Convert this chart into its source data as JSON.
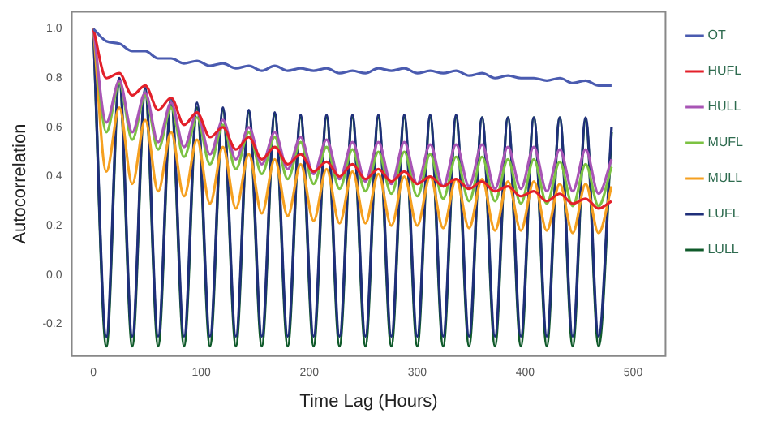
{
  "chart_data": {
    "type": "line",
    "xlabel": "Time Lag (Hours)",
    "ylabel": "Autocorrelation",
    "x": [
      0,
      12,
      24,
      36,
      48,
      60,
      72,
      84,
      96,
      108,
      120,
      132,
      144,
      156,
      168,
      180,
      192,
      204,
      216,
      228,
      240,
      252,
      264,
      276,
      288,
      300,
      312,
      324,
      336,
      348,
      360,
      372,
      384,
      396,
      408,
      420,
      432,
      444,
      456,
      468,
      480
    ],
    "series": [
      {
        "name": "OT",
        "color": "#4a5bb0",
        "values": [
          1.0,
          0.95,
          0.94,
          0.91,
          0.91,
          0.88,
          0.88,
          0.86,
          0.87,
          0.85,
          0.86,
          0.84,
          0.85,
          0.83,
          0.85,
          0.83,
          0.84,
          0.83,
          0.84,
          0.82,
          0.83,
          0.82,
          0.84,
          0.83,
          0.84,
          0.82,
          0.83,
          0.82,
          0.83,
          0.81,
          0.82,
          0.8,
          0.81,
          0.8,
          0.8,
          0.79,
          0.8,
          0.78,
          0.79,
          0.77,
          0.77
        ]
      },
      {
        "name": "HUFL",
        "color": "#e3202a",
        "values": [
          1.0,
          0.8,
          0.82,
          0.73,
          0.77,
          0.67,
          0.72,
          0.61,
          0.66,
          0.56,
          0.6,
          0.51,
          0.56,
          0.47,
          0.52,
          0.45,
          0.49,
          0.42,
          0.46,
          0.4,
          0.45,
          0.39,
          0.43,
          0.38,
          0.42,
          0.37,
          0.4,
          0.36,
          0.39,
          0.35,
          0.38,
          0.34,
          0.36,
          0.32,
          0.34,
          0.3,
          0.33,
          0.29,
          0.31,
          0.27,
          0.3
        ]
      },
      {
        "name": "HULL",
        "color": "#a855b5",
        "values": [
          1.0,
          0.62,
          0.79,
          0.58,
          0.74,
          0.54,
          0.7,
          0.52,
          0.66,
          0.49,
          0.63,
          0.47,
          0.6,
          0.45,
          0.58,
          0.43,
          0.56,
          0.41,
          0.55,
          0.39,
          0.54,
          0.38,
          0.54,
          0.37,
          0.54,
          0.37,
          0.53,
          0.36,
          0.53,
          0.36,
          0.53,
          0.35,
          0.52,
          0.35,
          0.52,
          0.34,
          0.51,
          0.34,
          0.51,
          0.33,
          0.47
        ]
      },
      {
        "name": "MUFL",
        "color": "#7cc242",
        "values": [
          1.0,
          0.58,
          0.78,
          0.55,
          0.73,
          0.51,
          0.68,
          0.48,
          0.64,
          0.45,
          0.61,
          0.43,
          0.58,
          0.41,
          0.56,
          0.39,
          0.54,
          0.37,
          0.52,
          0.35,
          0.51,
          0.34,
          0.5,
          0.33,
          0.5,
          0.32,
          0.49,
          0.31,
          0.48,
          0.3,
          0.48,
          0.3,
          0.47,
          0.29,
          0.47,
          0.29,
          0.46,
          0.28,
          0.45,
          0.28,
          0.44
        ]
      },
      {
        "name": "MULL",
        "color": "#f5a020",
        "values": [
          1.0,
          0.42,
          0.68,
          0.37,
          0.63,
          0.34,
          0.58,
          0.32,
          0.55,
          0.29,
          0.52,
          0.27,
          0.49,
          0.25,
          0.47,
          0.24,
          0.45,
          0.22,
          0.43,
          0.21,
          0.42,
          0.21,
          0.41,
          0.2,
          0.4,
          0.2,
          0.4,
          0.19,
          0.39,
          0.19,
          0.39,
          0.18,
          0.38,
          0.18,
          0.38,
          0.18,
          0.37,
          0.17,
          0.37,
          0.17,
          0.36
        ]
      },
      {
        "name": "LUFL",
        "color": "#1f2f7a",
        "values": [
          1.0,
          -0.25,
          0.8,
          -0.25,
          0.76,
          -0.25,
          0.72,
          -0.25,
          0.7,
          -0.25,
          0.68,
          -0.25,
          0.67,
          -0.25,
          0.66,
          -0.25,
          0.65,
          -0.25,
          0.65,
          -0.25,
          0.65,
          -0.25,
          0.65,
          -0.25,
          0.65,
          -0.25,
          0.65,
          -0.25,
          0.65,
          -0.25,
          0.64,
          -0.25,
          0.64,
          -0.25,
          0.64,
          -0.25,
          0.64,
          -0.25,
          0.64,
          -0.25,
          0.6
        ]
      },
      {
        "name": "LULL",
        "color": "#0f5a2a",
        "values": [
          1.0,
          -0.29,
          0.78,
          -0.29,
          0.74,
          -0.29,
          0.7,
          -0.29,
          0.68,
          -0.29,
          0.67,
          -0.29,
          0.66,
          -0.29,
          0.65,
          -0.29,
          0.64,
          -0.29,
          0.64,
          -0.29,
          0.64,
          -0.29,
          0.64,
          -0.29,
          0.64,
          -0.29,
          0.64,
          -0.29,
          0.64,
          -0.29,
          0.64,
          -0.29,
          0.64,
          -0.29,
          0.64,
          -0.29,
          0.64,
          -0.29,
          0.63,
          -0.29,
          0.58
        ]
      }
    ],
    "xlim": [
      -20,
      530
    ],
    "xticks": [
      0,
      100,
      200,
      300,
      400,
      500
    ],
    "ylim": [
      -0.33,
      1.07
    ],
    "yticks": [
      {
        "value": -0.2,
        "label": "-0.2"
      },
      {
        "value": 0,
        "label": "0.0"
      },
      0.2,
      0.4,
      0.6,
      0.8,
      {
        "value": 1,
        "label": "1.0"
      }
    ],
    "grid": false,
    "legend": "right",
    "marker": "none",
    "line_style": "solid"
  }
}
